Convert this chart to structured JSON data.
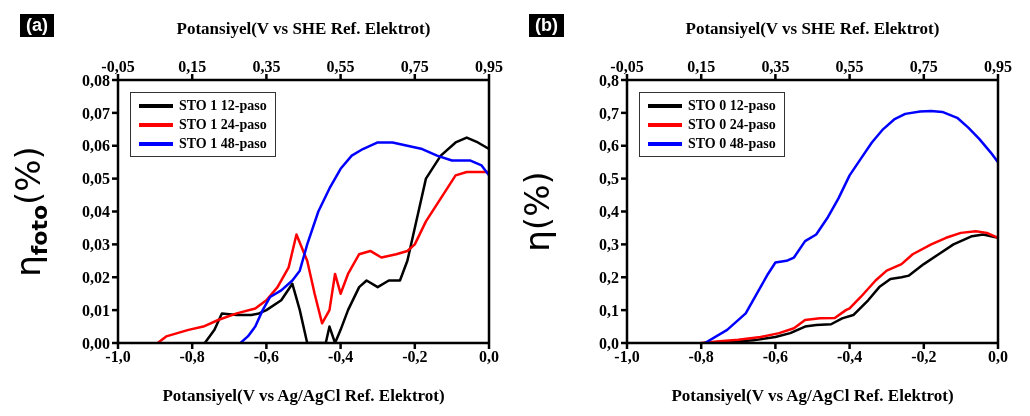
{
  "chart_data": [
    {
      "type": "line",
      "title": "(a)",
      "xlabel": "Potansiyel(V vs Ag/AgCl Ref. Elektrot)",
      "x2label": "Potansiyel(V vs SHE Ref. Elektrot)",
      "ylabel": "η$_{foto}$(%)",
      "xlim": [
        -1.0,
        0.0
      ],
      "xticks": [
        {
          "value": -1.0,
          "label": "-1,0"
        },
        {
          "value": -0.8,
          "label": "-0,8"
        },
        {
          "value": -0.6,
          "label": "-0,6"
        },
        {
          "value": -0.4,
          "label": "-0,4"
        },
        {
          "value": -0.2,
          "label": "-0,2"
        },
        {
          "value": 0.0,
          "label": "0,0"
        }
      ],
      "x2lim": [
        -0.05,
        0.95
      ],
      "x2ticks": [
        {
          "value": -0.05,
          "label": "-0,05"
        },
        {
          "value": 0.15,
          "label": "0,15"
        },
        {
          "value": 0.35,
          "label": "0,35"
        },
        {
          "value": 0.55,
          "label": "0,55"
        },
        {
          "value": 0.75,
          "label": "0,75"
        },
        {
          "value": 0.95,
          "label": "0,95"
        }
      ],
      "ylim": [
        0,
        0.08
      ],
      "yticks": [
        {
          "value": 0,
          "label": "0,00"
        },
        {
          "value": 0.01,
          "label": "0,01"
        },
        {
          "value": 0.02,
          "label": "0,02"
        },
        {
          "value": 0.03,
          "label": "0,03"
        },
        {
          "value": 0.04,
          "label": "0,04"
        },
        {
          "value": 0.05,
          "label": "0,05"
        },
        {
          "value": 0.06,
          "label": "0,06"
        },
        {
          "value": 0.07,
          "label": "0,07"
        },
        {
          "value": 0.08,
          "label": "0,08"
        }
      ],
      "legend": "top left",
      "marker": "none",
      "line_style": "solid",
      "series": [
        {
          "name": "STO 1 12-paso",
          "color": "#000000",
          "x": [
            -0.766,
            -0.74,
            -0.72,
            -0.68,
            -0.64,
            -0.62,
            -0.6,
            -0.56,
            -0.53,
            -0.51,
            -0.49,
            -0.44,
            -0.43,
            -0.415,
            -0.4,
            -0.38,
            -0.35,
            -0.33,
            -0.3,
            -0.27,
            -0.24,
            -0.22,
            -0.19,
            -0.17,
            -0.13,
            -0.09,
            -0.06,
            -0.03,
            0.0
          ],
          "values": [
            0,
            0.004,
            0.009,
            0.0085,
            0.0085,
            0.009,
            0.01,
            0.013,
            0.018,
            0.01,
            0,
            0,
            0.005,
            0,
            0.004,
            0.01,
            0.017,
            0.019,
            0.017,
            0.019,
            0.019,
            0.025,
            0.04,
            0.05,
            0.057,
            0.061,
            0.0625,
            0.061,
            0.059
          ]
        },
        {
          "name": "STO 1 24-paso",
          "color": "#ff0000",
          "x": [
            -0.893,
            -0.87,
            -0.81,
            -0.77,
            -0.73,
            -0.68,
            -0.63,
            -0.6,
            -0.57,
            -0.54,
            -0.519,
            -0.49,
            -0.47,
            -0.45,
            -0.43,
            -0.415,
            -0.4,
            -0.38,
            -0.35,
            -0.32,
            -0.29,
            -0.25,
            -0.22,
            -0.2,
            -0.17,
            -0.13,
            -0.09,
            -0.06,
            0.0
          ],
          "values": [
            0,
            0.002,
            0.004,
            0.005,
            0.007,
            0.009,
            0.0105,
            0.013,
            0.017,
            0.023,
            0.033,
            0.025,
            0.015,
            0.006,
            0.01,
            0.021,
            0.015,
            0.021,
            0.027,
            0.028,
            0.026,
            0.027,
            0.028,
            0.03,
            0.037,
            0.044,
            0.051,
            0.052,
            0.052
          ]
        },
        {
          "name": "STO 1 48-paso",
          "color": "#0000ff",
          "x": [
            -0.67,
            -0.65,
            -0.63,
            -0.61,
            -0.59,
            -0.56,
            -0.53,
            -0.51,
            -0.49,
            -0.46,
            -0.43,
            -0.4,
            -0.37,
            -0.34,
            -0.3,
            -0.26,
            -0.22,
            -0.18,
            -0.14,
            -0.1,
            -0.05,
            -0.02,
            0.0
          ],
          "values": [
            0,
            0.002,
            0.005,
            0.01,
            0.014,
            0.016,
            0.019,
            0.022,
            0.03,
            0.04,
            0.047,
            0.053,
            0.057,
            0.059,
            0.061,
            0.061,
            0.06,
            0.059,
            0.057,
            0.0555,
            0.0555,
            0.054,
            0.051
          ]
        }
      ]
    },
    {
      "type": "line",
      "title": "(b)",
      "xlabel": "Potansiyel(V vs Ag/AgCl Ref. Elektrot)",
      "x2label": "Potansiyel(V vs SHE Ref. Elektrot)",
      "ylabel": "η(%)",
      "xlim": [
        -1.0,
        0.0
      ],
      "xticks": [
        {
          "value": -1.0,
          "label": "-1,0"
        },
        {
          "value": -0.8,
          "label": "-0,8"
        },
        {
          "value": -0.6,
          "label": "-0,6"
        },
        {
          "value": -0.4,
          "label": "-0,4"
        },
        {
          "value": -0.2,
          "label": "-0,2"
        },
        {
          "value": 0.0,
          "label": "0,0"
        }
      ],
      "x2lim": [
        -0.05,
        0.95
      ],
      "x2ticks": [
        {
          "value": -0.05,
          "label": "-0,05"
        },
        {
          "value": 0.15,
          "label": "0,15"
        },
        {
          "value": 0.35,
          "label": "0,35"
        },
        {
          "value": 0.55,
          "label": "0,55"
        },
        {
          "value": 0.75,
          "label": "0,75"
        },
        {
          "value": 0.95,
          "label": "0,95"
        }
      ],
      "ylim": [
        0,
        0.8
      ],
      "yticks": [
        {
          "value": 0,
          "label": "0,0"
        },
        {
          "value": 0.1,
          "label": "0,1"
        },
        {
          "value": 0.2,
          "label": "0,2"
        },
        {
          "value": 0.3,
          "label": "0,3"
        },
        {
          "value": 0.4,
          "label": "0,4"
        },
        {
          "value": 0.5,
          "label": "0,5"
        },
        {
          "value": 0.6,
          "label": "0,6"
        },
        {
          "value": 0.7,
          "label": "0,7"
        },
        {
          "value": 0.8,
          "label": "0,8"
        }
      ],
      "legend": "top left",
      "marker": "none",
      "line_style": "solid",
      "series": [
        {
          "name": "STO 0 12-paso",
          "color": "#000000",
          "x": [
            -0.79,
            -0.72,
            -0.66,
            -0.6,
            -0.56,
            -0.52,
            -0.49,
            -0.45,
            -0.42,
            -0.39,
            -0.35,
            -0.32,
            -0.29,
            -0.26,
            -0.24,
            -0.2,
            -0.16,
            -0.12,
            -0.07,
            -0.04,
            0.0
          ],
          "values": [
            0,
            0.003,
            0.008,
            0.018,
            0.03,
            0.05,
            0.055,
            0.057,
            0.075,
            0.085,
            0.13,
            0.17,
            0.195,
            0.2,
            0.205,
            0.24,
            0.27,
            0.3,
            0.325,
            0.33,
            0.32
          ]
        },
        {
          "name": "STO 0 24-paso",
          "color": "#ff0000",
          "x": [
            -0.8,
            -0.75,
            -0.7,
            -0.64,
            -0.59,
            -0.55,
            -0.52,
            -0.48,
            -0.44,
            -0.41,
            -0.4,
            -0.37,
            -0.33,
            -0.3,
            -0.26,
            -0.23,
            -0.18,
            -0.14,
            -0.1,
            -0.06,
            -0.03,
            0.0
          ],
          "values": [
            0,
            0.005,
            0.01,
            0.018,
            0.03,
            0.045,
            0.07,
            0.075,
            0.076,
            0.1,
            0.105,
            0.14,
            0.19,
            0.22,
            0.24,
            0.27,
            0.3,
            0.32,
            0.335,
            0.34,
            0.335,
            0.32
          ]
        },
        {
          "name": "STO 0 48-paso",
          "color": "#0000ff",
          "x": [
            -0.79,
            -0.73,
            -0.68,
            -0.65,
            -0.62,
            -0.6,
            -0.57,
            -0.55,
            -0.52,
            -0.49,
            -0.46,
            -0.43,
            -0.4,
            -0.37,
            -0.34,
            -0.31,
            -0.28,
            -0.25,
            -0.21,
            -0.18,
            -0.15,
            -0.11,
            -0.08,
            -0.05,
            -0.02,
            0.0
          ],
          "values": [
            0,
            0.04,
            0.09,
            0.15,
            0.21,
            0.245,
            0.25,
            0.26,
            0.31,
            0.33,
            0.38,
            0.44,
            0.51,
            0.56,
            0.61,
            0.65,
            0.68,
            0.697,
            0.704,
            0.706,
            0.703,
            0.685,
            0.655,
            0.62,
            0.58,
            0.55
          ]
        }
      ]
    }
  ]
}
